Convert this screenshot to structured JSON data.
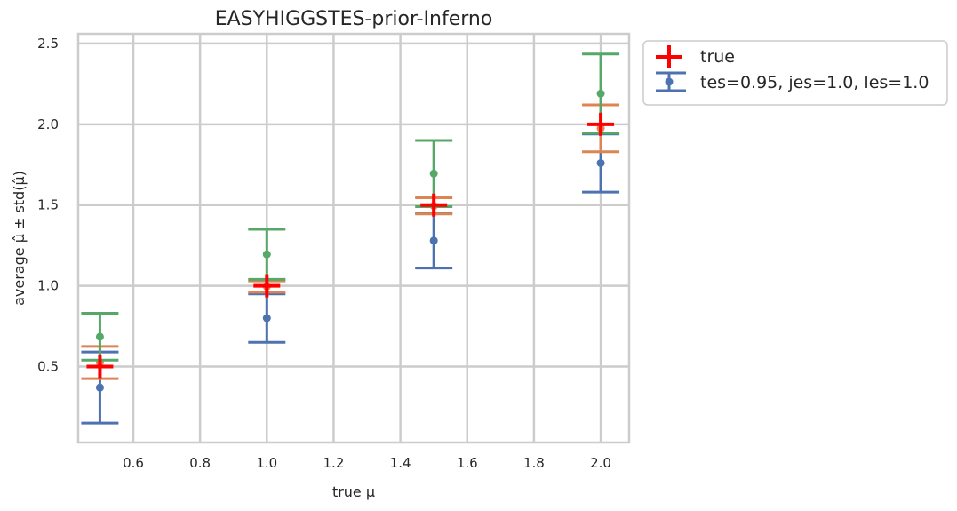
{
  "chart_data": {
    "type": "scatter",
    "title": "EASYHIGGSTES-prior-Inferno",
    "xlabel": "true μ",
    "ylabel": "average μ̂ ± std(μ̂)",
    "x_ticks": [
      "0.6",
      "0.8",
      "1.0",
      "1.2",
      "1.4",
      "1.6",
      "1.8",
      "2.0"
    ],
    "y_ticks": [
      "0.5",
      "1.0",
      "1.5",
      "2.0",
      "2.5"
    ],
    "xlim": [
      0.435,
      2.085
    ],
    "ylim": [
      0.03,
      2.56
    ],
    "grid": true,
    "legend_placement": "outside-top-right",
    "x": [
      0.5,
      1.0,
      1.5,
      2.0
    ],
    "true_values": [
      0.5,
      1.0,
      1.5,
      2.0
    ],
    "series": [
      {
        "name": "tes=0.95, jes=1.0, les=1.0",
        "color": "#4c72b0",
        "mean": [
          0.37,
          0.8,
          1.28,
          1.76
        ],
        "std": [
          0.22,
          0.15,
          0.17,
          0.18
        ]
      },
      {
        "color": "#dd8452",
        "mean": [
          0.525,
          0.995,
          1.495,
          1.975
        ],
        "std": [
          0.1,
          0.035,
          0.05,
          0.145
        ]
      },
      {
        "color": "#55a868",
        "mean": [
          0.685,
          1.195,
          1.695,
          2.19
        ],
        "std": [
          0.145,
          0.155,
          0.205,
          0.245
        ]
      }
    ],
    "true_marker": {
      "name": "true",
      "color": "#ff0000"
    }
  }
}
